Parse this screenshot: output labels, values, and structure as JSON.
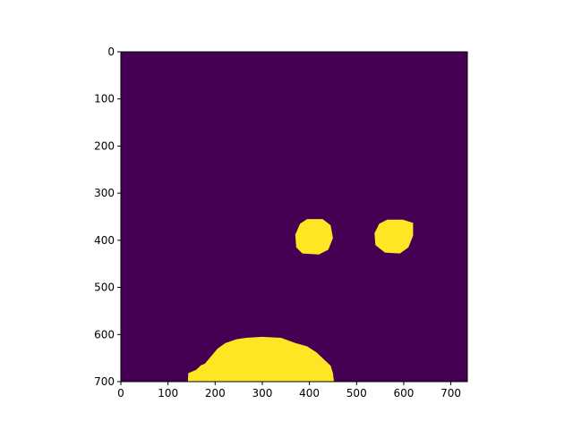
{
  "chart_data": {
    "type": "heatmap",
    "title": "",
    "xlabel": "",
    "ylabel": "",
    "xlim": [
      0,
      735
    ],
    "ylim": [
      700,
      0
    ],
    "x_ticks": [
      0,
      100,
      200,
      300,
      400,
      500,
      600,
      700
    ],
    "y_ticks": [
      0,
      100,
      200,
      300,
      400,
      500,
      600,
      700
    ],
    "x_tick_labels": [
      "0",
      "100",
      "200",
      "300",
      "400",
      "500",
      "600",
      "700"
    ],
    "y_tick_labels": [
      "0",
      "100",
      "200",
      "300",
      "400",
      "500",
      "600",
      "700"
    ],
    "colormap": "viridis",
    "background_value": 0,
    "foreground_value": 1,
    "colors": {
      "background": "#440154",
      "foreground": "#fde725"
    },
    "grid": false,
    "regions": [
      {
        "shape": "blob",
        "value": 1,
        "outline": [
          [
            395,
            355
          ],
          [
            428,
            355
          ],
          [
            445,
            368
          ],
          [
            450,
            395
          ],
          [
            440,
            420
          ],
          [
            420,
            430
          ],
          [
            385,
            428
          ],
          [
            372,
            415
          ],
          [
            370,
            388
          ],
          [
            380,
            365
          ]
        ]
      },
      {
        "shape": "blob",
        "value": 1,
        "outline": [
          [
            565,
            356
          ],
          [
            598,
            356
          ],
          [
            620,
            363
          ],
          [
            620,
            390
          ],
          [
            610,
            415
          ],
          [
            592,
            428
          ],
          [
            560,
            426
          ],
          [
            540,
            410
          ],
          [
            538,
            385
          ],
          [
            548,
            365
          ]
        ]
      },
      {
        "shape": "blob",
        "value": 1,
        "outline": [
          [
            142,
            700
          ],
          [
            143,
            682
          ],
          [
            160,
            675
          ],
          [
            170,
            665
          ],
          [
            178,
            662
          ],
          [
            190,
            648
          ],
          [
            205,
            630
          ],
          [
            222,
            618
          ],
          [
            245,
            610
          ],
          [
            265,
            607
          ],
          [
            300,
            605
          ],
          [
            340,
            607
          ],
          [
            370,
            618
          ],
          [
            395,
            625
          ],
          [
            415,
            638
          ],
          [
            430,
            652
          ],
          [
            445,
            666
          ],
          [
            450,
            682
          ],
          [
            452,
            700
          ]
        ]
      }
    ]
  }
}
